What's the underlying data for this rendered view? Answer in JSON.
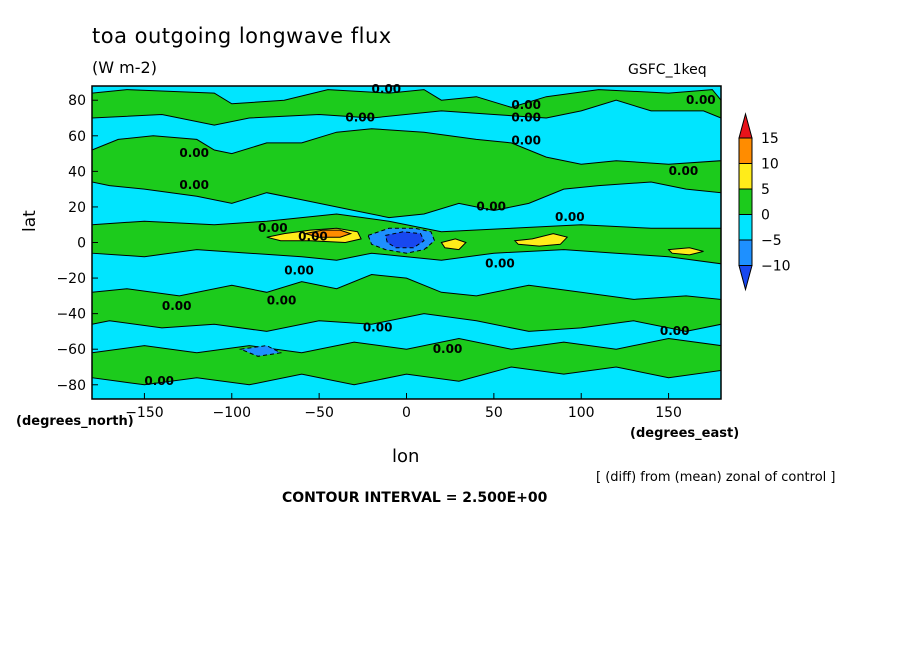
{
  "chart_data": {
    "type": "heatmap",
    "title": "toa outgoing longwave flux",
    "units": "(W m-2)",
    "dataset": "GSFC_1keq",
    "xlabel": "lon",
    "ylabel": "lat",
    "xunit": "(degrees_east)",
    "yunit": "(degrees_north)",
    "xlim": [
      -180,
      180
    ],
    "ylim": [
      -88,
      88
    ],
    "xticks": [
      -150,
      -100,
      -50,
      0,
      50,
      100,
      150
    ],
    "yticks": [
      -80,
      -60,
      -40,
      -20,
      0,
      20,
      40,
      60,
      80
    ],
    "note": "[ (diff) from (mean) zonal of control ]",
    "contour_interval": "CONTOUR INTERVAL = 2.500E+00",
    "contour_label": "0.00",
    "colorbar": {
      "levels": [
        15,
        10,
        5,
        0,
        -5,
        -10
      ],
      "bins": [
        {
          "range": "> 15",
          "color": "#e8131a"
        },
        {
          "range": "10 to 15",
          "color": "#ff8c00"
        },
        {
          "range": "5 to 10",
          "color": "#ffec1a"
        },
        {
          "range": "0 to 5",
          "color": "#1ccb1c"
        },
        {
          "range": "-5 to 0",
          "color": "#00e5ff"
        },
        {
          "range": "-10 to -5",
          "color": "#1e90ff"
        },
        {
          "range": "< -10",
          "color": "#1848f0"
        }
      ]
    },
    "background_bin": "-5 to 0",
    "regions": [
      {
        "bin": "0 to 5",
        "points": [
          [
            -180,
            84
          ],
          [
            -160,
            86
          ],
          [
            -110,
            84
          ],
          [
            -100,
            78
          ],
          [
            -70,
            80
          ],
          [
            -45,
            86
          ],
          [
            -10,
            84
          ],
          [
            10,
            86
          ],
          [
            20,
            80
          ],
          [
            40,
            82
          ],
          [
            60,
            76
          ],
          [
            80,
            82
          ],
          [
            110,
            86
          ],
          [
            150,
            84
          ],
          [
            175,
            86
          ],
          [
            180,
            80
          ],
          [
            180,
            70
          ],
          [
            170,
            74
          ],
          [
            140,
            74
          ],
          [
            120,
            80
          ],
          [
            100,
            74
          ],
          [
            80,
            70
          ],
          [
            50,
            72
          ],
          [
            20,
            74
          ],
          [
            -20,
            70
          ],
          [
            -50,
            72
          ],
          [
            -90,
            70
          ],
          [
            -110,
            66
          ],
          [
            -140,
            72
          ],
          [
            -180,
            70
          ]
        ]
      },
      {
        "bin": "0 to 5",
        "points": [
          [
            -165,
            58
          ],
          [
            -145,
            60
          ],
          [
            -120,
            58
          ],
          [
            -110,
            52
          ],
          [
            -100,
            50
          ],
          [
            -80,
            56
          ],
          [
            -60,
            56
          ],
          [
            -40,
            62
          ],
          [
            -20,
            64
          ],
          [
            10,
            62
          ],
          [
            40,
            58
          ],
          [
            60,
            56
          ],
          [
            80,
            48
          ],
          [
            100,
            44
          ],
          [
            120,
            46
          ],
          [
            150,
            44
          ],
          [
            180,
            46
          ],
          [
            180,
            28
          ],
          [
            160,
            30
          ],
          [
            140,
            34
          ],
          [
            110,
            32
          ],
          [
            90,
            30
          ],
          [
            70,
            22
          ],
          [
            50,
            18
          ],
          [
            30,
            22
          ],
          [
            10,
            16
          ],
          [
            -10,
            14
          ],
          [
            -30,
            18
          ],
          [
            -60,
            24
          ],
          [
            -80,
            28
          ],
          [
            -100,
            22
          ],
          [
            -120,
            26
          ],
          [
            -150,
            30
          ],
          [
            -170,
            32
          ],
          [
            -180,
            34
          ],
          [
            -180,
            52
          ]
        ]
      },
      {
        "bin": "0 to 5",
        "points": [
          [
            -180,
            10
          ],
          [
            -150,
            12
          ],
          [
            -110,
            10
          ],
          [
            -80,
            12
          ],
          [
            -40,
            16
          ],
          [
            -10,
            12
          ],
          [
            20,
            6
          ],
          [
            60,
            8
          ],
          [
            100,
            10
          ],
          [
            140,
            8
          ],
          [
            180,
            8
          ],
          [
            180,
            -12
          ],
          [
            150,
            -8
          ],
          [
            120,
            -6
          ],
          [
            90,
            -4
          ],
          [
            50,
            -6
          ],
          [
            20,
            -10
          ],
          [
            0,
            -8
          ],
          [
            -20,
            -6
          ],
          [
            -40,
            -10
          ],
          [
            -60,
            -8
          ],
          [
            -90,
            -6
          ],
          [
            -120,
            -4
          ],
          [
            -150,
            -8
          ],
          [
            -180,
            -6
          ]
        ]
      },
      {
        "bin": "0 to 5",
        "points": [
          [
            -180,
            -28
          ],
          [
            -160,
            -26
          ],
          [
            -130,
            -30
          ],
          [
            -100,
            -24
          ],
          [
            -80,
            -28
          ],
          [
            -60,
            -22
          ],
          [
            -40,
            -26
          ],
          [
            -20,
            -18
          ],
          [
            0,
            -20
          ],
          [
            20,
            -28
          ],
          [
            40,
            -30
          ],
          [
            70,
            -24
          ],
          [
            100,
            -28
          ],
          [
            130,
            -32
          ],
          [
            160,
            -30
          ],
          [
            180,
            -32
          ],
          [
            180,
            -46
          ],
          [
            160,
            -50
          ],
          [
            130,
            -44
          ],
          [
            100,
            -48
          ],
          [
            70,
            -50
          ],
          [
            40,
            -44
          ],
          [
            10,
            -40
          ],
          [
            -20,
            -46
          ],
          [
            -50,
            -44
          ],
          [
            -80,
            -50
          ],
          [
            -110,
            -46
          ],
          [
            -140,
            -48
          ],
          [
            -170,
            -44
          ],
          [
            -180,
            -46
          ]
        ]
      },
      {
        "bin": "0 to 5",
        "points": [
          [
            -180,
            -62
          ],
          [
            -150,
            -58
          ],
          [
            -120,
            -62
          ],
          [
            -90,
            -58
          ],
          [
            -60,
            -62
          ],
          [
            -30,
            -56
          ],
          [
            0,
            -60
          ],
          [
            30,
            -54
          ],
          [
            60,
            -60
          ],
          [
            90,
            -56
          ],
          [
            120,
            -60
          ],
          [
            150,
            -54
          ],
          [
            180,
            -58
          ],
          [
            180,
            -72
          ],
          [
            150,
            -76
          ],
          [
            120,
            -70
          ],
          [
            90,
            -74
          ],
          [
            60,
            -70
          ],
          [
            30,
            -78
          ],
          [
            0,
            -74
          ],
          [
            -30,
            -80
          ],
          [
            -60,
            -74
          ],
          [
            -90,
            -80
          ],
          [
            -120,
            -76
          ],
          [
            -150,
            -80
          ],
          [
            -180,
            -76
          ]
        ]
      },
      {
        "bin": "5 to 10",
        "points": [
          [
            -80,
            3
          ],
          [
            -70,
            5
          ],
          [
            -55,
            7
          ],
          [
            -40,
            8
          ],
          [
            -28,
            6
          ],
          [
            -26,
            2
          ],
          [
            -35,
            0
          ],
          [
            -55,
            1
          ],
          [
            -72,
            1
          ]
        ]
      },
      {
        "bin": "10 to 15",
        "points": [
          [
            -58,
            5
          ],
          [
            -48,
            7
          ],
          [
            -38,
            7
          ],
          [
            -32,
            5
          ],
          [
            -38,
            3
          ],
          [
            -50,
            3
          ]
        ]
      },
      {
        "bin": "5 to 10",
        "points": [
          [
            20,
            0
          ],
          [
            28,
            2
          ],
          [
            34,
            0
          ],
          [
            30,
            -4
          ],
          [
            22,
            -3
          ]
        ]
      },
      {
        "bin": "5 to 10",
        "points": [
          [
            62,
            1
          ],
          [
            72,
            2
          ],
          [
            84,
            5
          ],
          [
            92,
            3
          ],
          [
            88,
            -1
          ],
          [
            76,
            -2
          ],
          [
            64,
            -1
          ]
        ]
      },
      {
        "bin": "5 to 10",
        "points": [
          [
            150,
            -4
          ],
          [
            162,
            -3
          ],
          [
            170,
            -5
          ],
          [
            162,
            -7
          ],
          [
            152,
            -6
          ]
        ]
      },
      {
        "bin": "5 to 10",
        "points": [
          [
            -10,
            -2
          ],
          [
            5,
            -1
          ],
          [
            12,
            -3
          ],
          [
            2,
            -5
          ]
        ]
      },
      {
        "bin": "-10 to -5",
        "points": [
          [
            -22,
            4
          ],
          [
            -10,
            8
          ],
          [
            5,
            8
          ],
          [
            14,
            6
          ],
          [
            16,
            1
          ],
          [
            10,
            -4
          ],
          [
            0,
            -6
          ],
          [
            -12,
            -4
          ],
          [
            -20,
            -1
          ]
        ]
      },
      {
        "bin": "< -10",
        "points": [
          [
            -12,
            4
          ],
          [
            -2,
            6
          ],
          [
            8,
            5
          ],
          [
            10,
            1
          ],
          [
            4,
            -3
          ],
          [
            -6,
            -3
          ],
          [
            -11,
            0
          ]
        ]
      },
      {
        "bin": "-10 to -5",
        "points": [
          [
            -95,
            -60
          ],
          [
            -80,
            -58
          ],
          [
            -72,
            -62
          ],
          [
            -85,
            -64
          ]
        ]
      }
    ],
    "contour_label_positions": [
      {
        "lon": -20,
        "lat": 84
      },
      {
        "lon": 60,
        "lat": 75
      },
      {
        "lon": 160,
        "lat": 78
      },
      {
        "lon": -35,
        "lat": 68
      },
      {
        "lon": 60,
        "lat": 68
      },
      {
        "lon": -130,
        "lat": 48
      },
      {
        "lon": -130,
        "lat": 30
      },
      {
        "lon": 60,
        "lat": 55
      },
      {
        "lon": 150,
        "lat": 38
      },
      {
        "lon": 40,
        "lat": 18
      },
      {
        "lon": 85,
        "lat": 12
      },
      {
        "lon": -85,
        "lat": 6
      },
      {
        "lon": -62,
        "lat": 1
      },
      {
        "lon": 45,
        "lat": -14
      },
      {
        "lon": -70,
        "lat": -18
      },
      {
        "lon": -80,
        "lat": -35
      },
      {
        "lon": -140,
        "lat": -38
      },
      {
        "lon": -25,
        "lat": -50
      },
      {
        "lon": 15,
        "lat": -62
      },
      {
        "lon": 145,
        "lat": -52
      },
      {
        "lon": -150,
        "lat": -80
      }
    ]
  }
}
